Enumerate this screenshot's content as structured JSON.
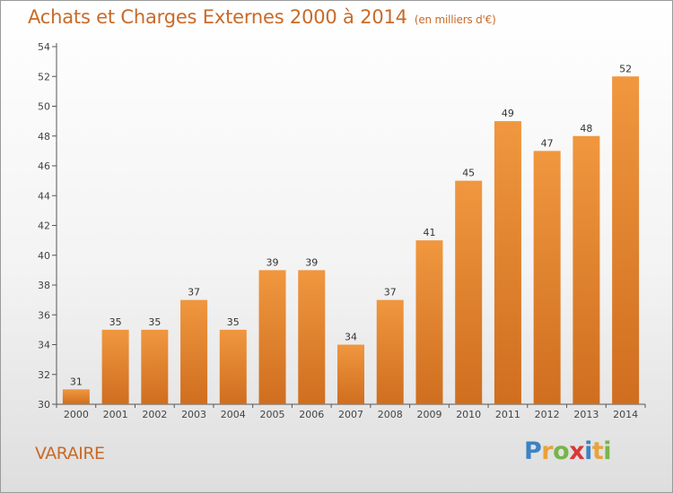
{
  "title": "Achats et Charges Externes 2000 à 2014",
  "subtitle": "(en milliers d'€)",
  "place": "VARAIRE",
  "logo": {
    "letters": [
      "P",
      "r",
      "o",
      "x",
      "i",
      "t",
      "i"
    ],
    "colors": [
      "#3b83c4",
      "#e8a33a",
      "#77b44a",
      "#d93838",
      "#3b83c4",
      "#e8a33a",
      "#77b44a"
    ]
  },
  "chart_data": {
    "type": "bar",
    "title": "Achats et Charges Externes 2000 à 2014",
    "subtitle": "(en milliers d'€)",
    "categories": [
      "2000",
      "2001",
      "2002",
      "2003",
      "2004",
      "2005",
      "2006",
      "2007",
      "2008",
      "2009",
      "2010",
      "2011",
      "2012",
      "2013",
      "2014"
    ],
    "values": [
      31,
      35,
      35,
      37,
      35,
      39,
      39,
      34,
      37,
      41,
      45,
      49,
      47,
      48,
      52
    ],
    "ylim": [
      30,
      54
    ],
    "yticks": [
      30,
      32,
      34,
      36,
      38,
      40,
      42,
      44,
      46,
      48,
      50,
      52,
      54
    ],
    "grid": false,
    "bar_color": "#f0973f",
    "bar_color_dark": "#cf6e1f"
  }
}
